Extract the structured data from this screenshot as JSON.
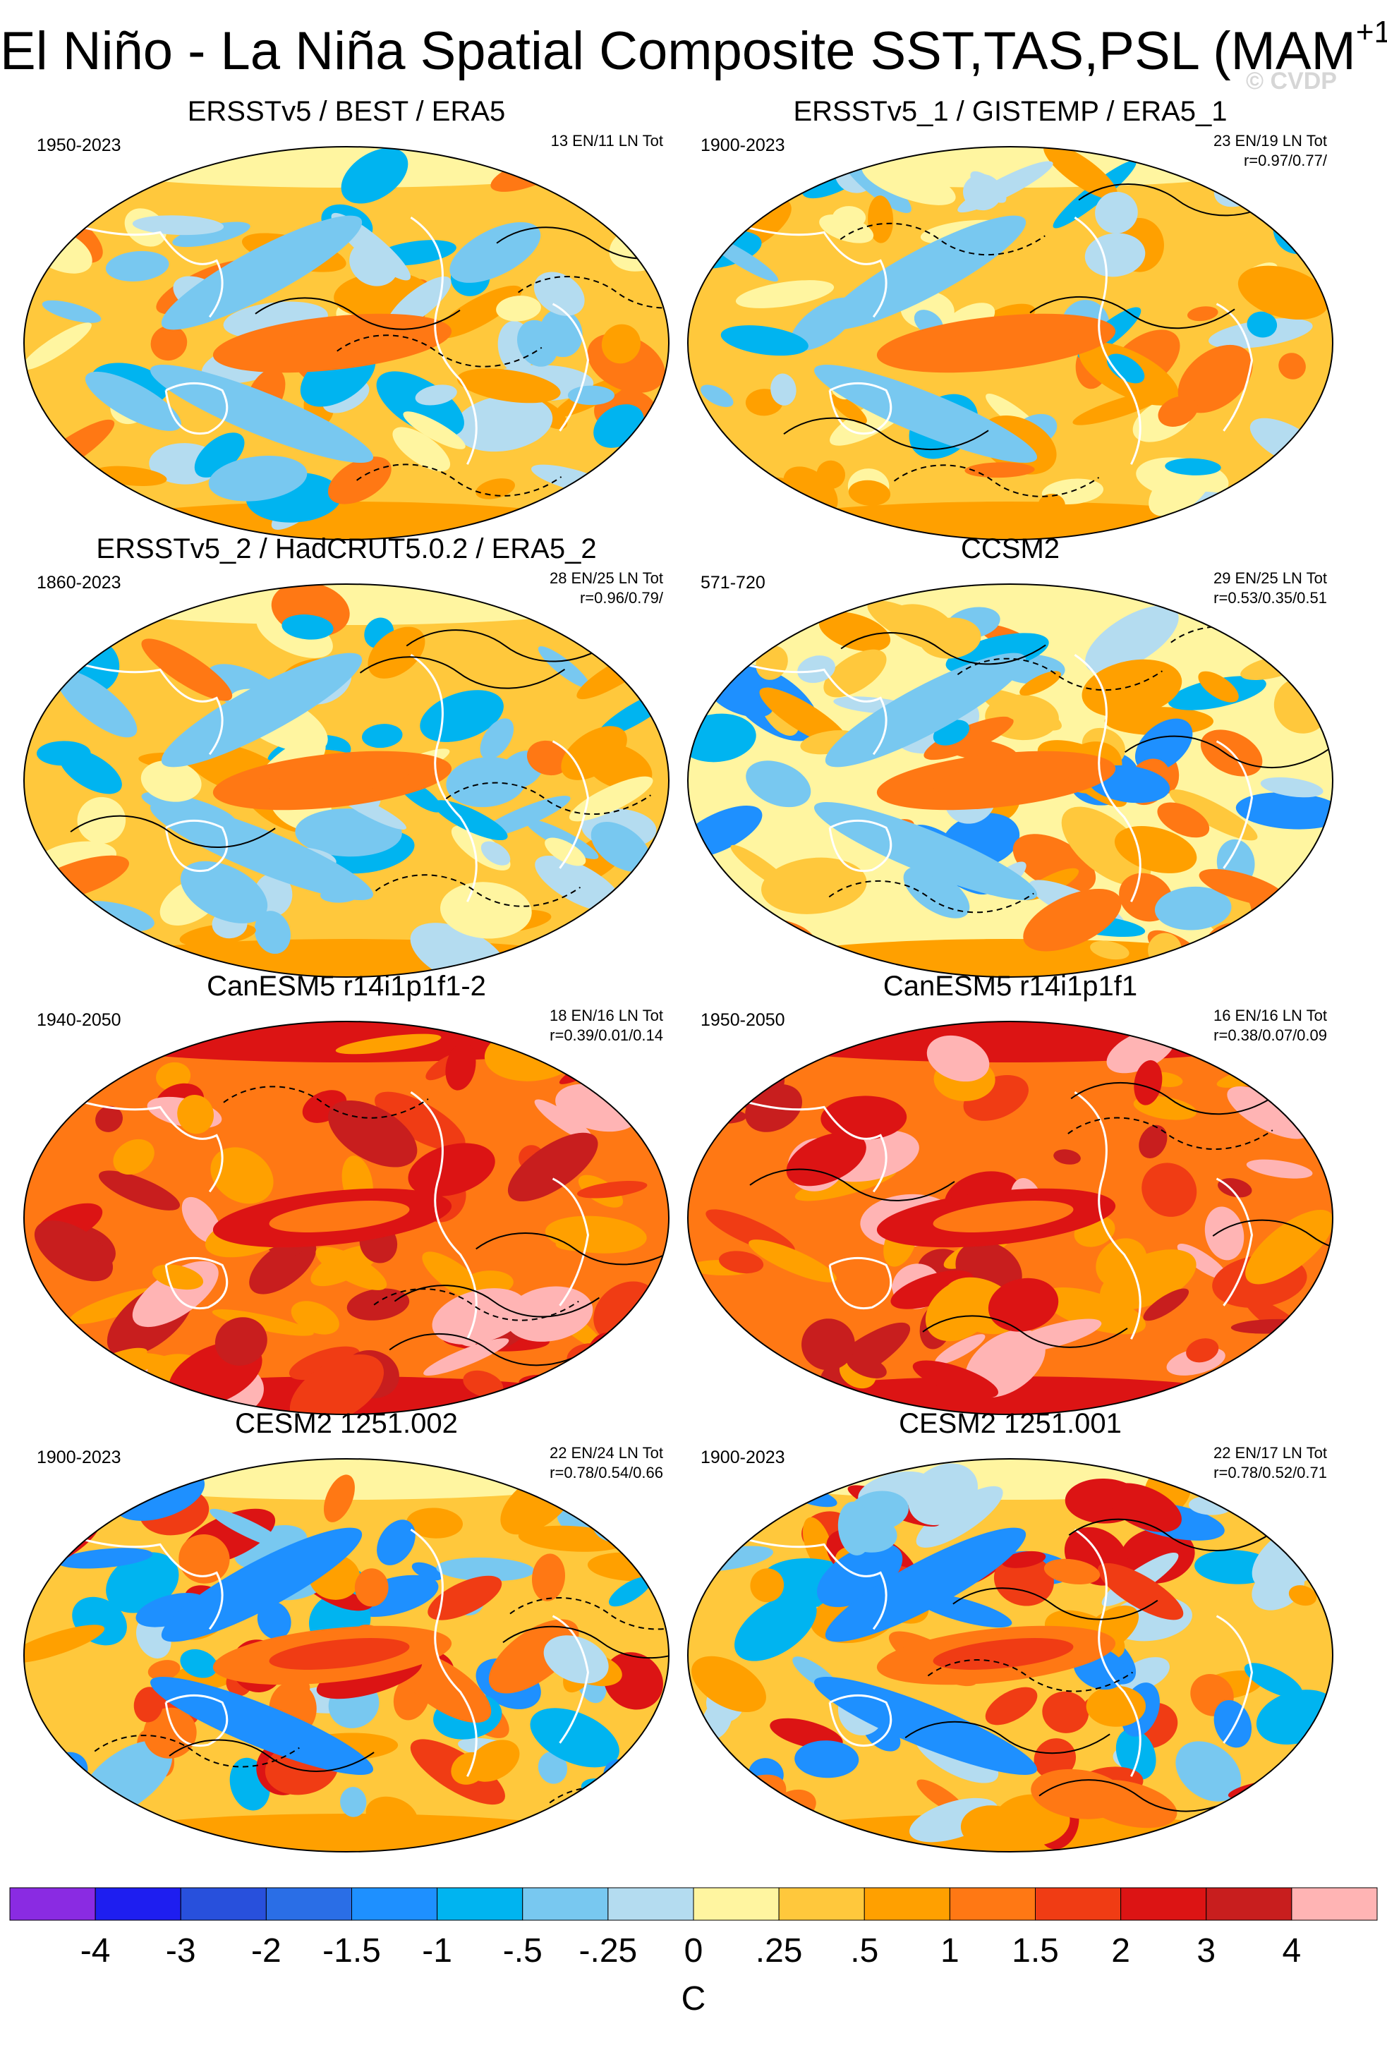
{
  "figure": {
    "title": "El Niño - La Niña Spatial Composite SST,TAS,PSL (MAM",
    "title_superscript": "+1",
    "title_suffix": ")",
    "watermark": "© CVDP"
  },
  "chart_data": {
    "type": "heatmap",
    "description_variable": "Spatial composite difference (El Niño minus La Niña) of SST/TAS shaded, PSL contoured",
    "colorbar": {
      "units": "C",
      "levels": [
        "-4",
        "-3",
        "-2",
        "-1.5",
        "-1",
        "-.5",
        "-.25",
        "0",
        ".25",
        ".5",
        "1",
        "1.5",
        "2",
        "3",
        "4"
      ],
      "level_values": [
        -4,
        -3,
        -2,
        -1.5,
        -1,
        -0.5,
        -0.25,
        0,
        0.25,
        0.5,
        1,
        1.5,
        2,
        3,
        4
      ],
      "colors": [
        "#8a2be2",
        "#1e1ef0",
        "#2850dc",
        "#2a6ee6",
        "#1e90ff",
        "#00b4f0",
        "#78c8f0",
        "#b4dcf0",
        "#fff5a0",
        "#ffc83c",
        "#ffa000",
        "#ff7814",
        "#f03c14",
        "#dc1414",
        "#c81e1e",
        "#ffb4b4"
      ]
    },
    "panels": [
      {
        "title": "ERSSTv5 / BEST / ERA5",
        "years": "1950-2023",
        "stats_line1": "13 EN/11 LN Tot",
        "stats_line2": ""
      },
      {
        "title": "ERSSTv5_1 / GISTEMP / ERA5_1",
        "years": "1900-2023",
        "stats_line1": "23 EN/19 LN Tot",
        "stats_line2": "r=0.97/0.77/"
      },
      {
        "title": "ERSSTv5_2 / HadCRUT5.0.2 / ERA5_2",
        "years": "1860-2023",
        "stats_line1": "28 EN/25 LN Tot",
        "stats_line2": "r=0.96/0.79/"
      },
      {
        "title": "CCSM2",
        "years": "571-720",
        "stats_line1": "29 EN/25 LN Tot",
        "stats_line2": "r=0.53/0.35/0.51"
      },
      {
        "title": "CanESM5 r14i1p1f1-2",
        "years": "1940-2050",
        "stats_line1": "18 EN/16 LN Tot",
        "stats_line2": "r=0.39/0.01/0.14"
      },
      {
        "title": "CanESM5 r14i1p1f1",
        "years": "1950-2050",
        "stats_line1": "16 EN/16 LN Tot",
        "stats_line2": "r=0.38/0.07/0.09"
      },
      {
        "title": "CESM2 1251.002",
        "years": "1900-2023",
        "stats_line1": "22 EN/24 LN Tot",
        "stats_line2": "r=0.78/0.54/0.66"
      },
      {
        "title": "CESM2 1251.001",
        "years": "1900-2023",
        "stats_line1": "22 EN/17 LN Tot",
        "stats_line2": "r=0.78/0.52/0.71"
      }
    ],
    "panel_styles": [
      "obs",
      "obs",
      "obs",
      "model_mixed",
      "model_warm",
      "model_warm",
      "model_strong",
      "model_strong"
    ]
  }
}
